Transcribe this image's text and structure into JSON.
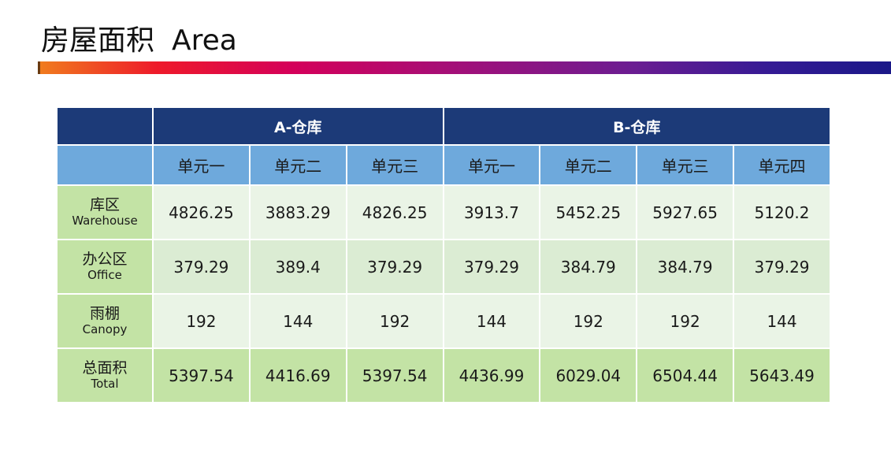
{
  "title": {
    "zh": "房屋面积",
    "en": "Area"
  },
  "table": {
    "groups": [
      "A-仓库",
      "B-仓库"
    ],
    "units": [
      "单元一",
      "单元二",
      "单元三",
      "单元一",
      "单元二",
      "单元三",
      "单元四"
    ],
    "rows": [
      {
        "zh": "库区",
        "en": "Warehouse",
        "values": [
          "4826.25",
          "3883.29",
          "4826.25",
          "3913.7",
          "5452.25",
          "5927.65",
          "5120.2"
        ]
      },
      {
        "zh": "办公区",
        "en": "Office",
        "values": [
          "379.29",
          "389.4",
          "379.29",
          "379.29",
          "384.79",
          "384.79",
          "379.29"
        ]
      },
      {
        "zh": "雨棚",
        "en": "Canopy",
        "values": [
          "192",
          "144",
          "192",
          "144",
          "192",
          "192",
          "144"
        ]
      },
      {
        "zh": "总面积",
        "en": "Total",
        "values": [
          "5397.54",
          "4416.69",
          "5397.54",
          "4436.99",
          "6029.04",
          "6504.44",
          "5643.49"
        ]
      }
    ]
  },
  "colors": {
    "header_dark": "#1c3a78",
    "header_light": "#6ea9dc",
    "row_light": "#eaf4e6",
    "row_mid": "#dbecd3",
    "row_total": "#c3e3a5"
  }
}
